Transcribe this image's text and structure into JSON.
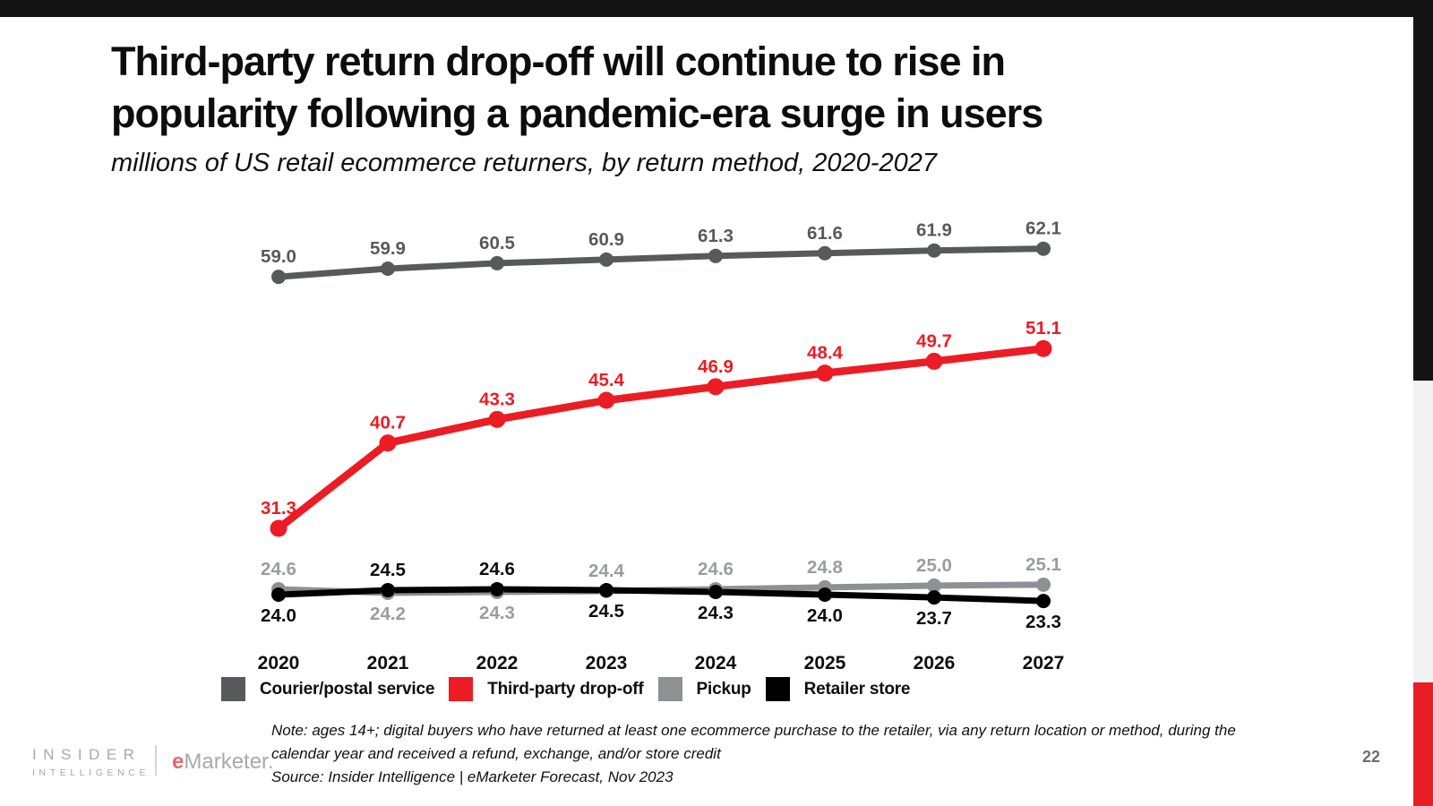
{
  "page": {
    "top_bar_color": "#141414",
    "rail_black": "#141414",
    "rail_gray": "#f2f2f2",
    "rail_red": "#e91d26",
    "accent_red": "#ec1c24"
  },
  "header": {
    "title_line1": "Third-party return drop-off will continue to rise in",
    "title_line2": "popularity following a pandemic-era surge in users",
    "subtitle": "millions of US retail ecommerce returners, by return method, 2020-2027"
  },
  "chart_data": {
    "type": "line",
    "title": "Third-party return drop-off will continue to rise in popularity following a pandemic-era surge in users",
    "subtitle": "millions of US retail ecommerce returners, by return method, 2020-2027",
    "categories": [
      "2020",
      "2021",
      "2022",
      "2023",
      "2024",
      "2025",
      "2026",
      "2027"
    ],
    "series": [
      {
        "name": "Courier/postal service",
        "color": "#58595b",
        "label_color": "#58595b",
        "values": [
          59.0,
          59.9,
          60.5,
          60.9,
          61.3,
          61.6,
          61.9,
          62.1
        ],
        "label_side": [
          "above",
          "above",
          "above",
          "above",
          "above",
          "above",
          "above",
          "above"
        ]
      },
      {
        "name": "Third-party drop-off",
        "color": "#ec1c24",
        "label_color": "#ec1c24",
        "values": [
          31.3,
          40.7,
          43.3,
          45.4,
          46.9,
          48.4,
          49.7,
          51.1
        ],
        "label_side": [
          "above",
          "above",
          "above",
          "above",
          "above",
          "above",
          "above",
          "above"
        ]
      },
      {
        "name": "Pickup",
        "color": "#8e9093",
        "label_color": "#9a9c9f",
        "values": [
          24.6,
          24.2,
          24.3,
          24.4,
          24.6,
          24.8,
          25.0,
          25.1
        ],
        "label_side": [
          "above",
          "below",
          "below",
          "above",
          "above",
          "above",
          "above",
          "above"
        ]
      },
      {
        "name": "Retailer store",
        "color": "#000000",
        "label_color": "#0d0d0d",
        "values": [
          24.0,
          24.5,
          24.6,
          24.5,
          24.3,
          24.0,
          23.7,
          23.3
        ],
        "label_side": [
          "below",
          "above",
          "above",
          "below",
          "below",
          "below",
          "below",
          "below"
        ]
      }
    ],
    "ylim": [
      20,
      65
    ],
    "grid": false,
    "legend_position": "bottom",
    "value_format": "one-decimal",
    "data_labels": true
  },
  "footer": {
    "note_line1": "Note: ages 14+; digital buyers who have returned at least one ecommerce purchase to the retailer, via any return location or method, during the",
    "note_line2": "calendar year and received a refund, exchange, and/or store credit",
    "source": "Source: Insider Intelligence | eMarketer Forecast, Nov 2023",
    "page_number": "22"
  },
  "branding": {
    "insider": "INSIDER",
    "intelligence": "INTELLIGENCE",
    "emarketer_e": "e",
    "emarketer_rest": "Marketer."
  }
}
